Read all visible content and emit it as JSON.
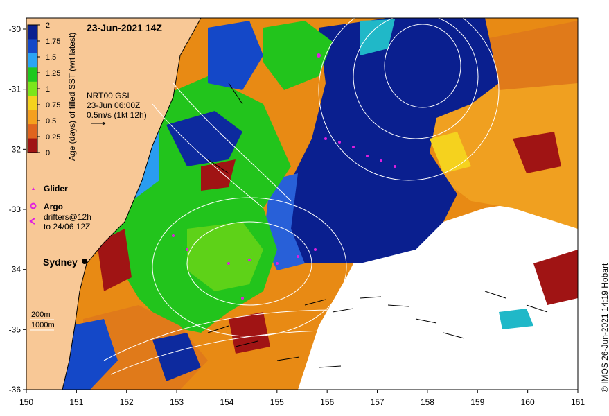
{
  "map": {
    "title": "23-Jun-2021 14Z",
    "colorbar": {
      "label": "Age (days) of filled SST (wrt latest)",
      "ticks": [
        "2",
        "1.75",
        "1.5",
        "1.25",
        "1",
        "0.75",
        "0.5",
        "0.25",
        "0"
      ],
      "colors": [
        "#0a1f8f",
        "#1448c8",
        "#2aa4f4",
        "#1ec81e",
        "#7ce61a",
        "#f5d21e",
        "#f5a01e",
        "#e0641e",
        "#a01414"
      ]
    },
    "gsl_info": [
      "NRT00 GSL",
      "23-Jun 06:00Z",
      "0.5m/s (1kt 12h)"
    ],
    "legend": {
      "glider": "Glider",
      "argo": "Argo",
      "drifters": [
        "drifters@12h",
        "to 24/06 12Z"
      ]
    },
    "place": "Sydney",
    "depths": [
      "200m",
      "1000m"
    ],
    "credit": "© IMOS 26-Jun-2021 14:19 Hobart",
    "x_ticks": [
      "150",
      "151",
      "152",
      "153",
      "154",
      "155",
      "156",
      "157",
      "158",
      "159",
      "160",
      "161"
    ],
    "y_ticks": [
      "-30",
      "-31",
      "-32",
      "-33",
      "-34",
      "-35",
      "-36"
    ],
    "colors": {
      "land": "#f8c896",
      "marker": "#e01ee0"
    }
  }
}
